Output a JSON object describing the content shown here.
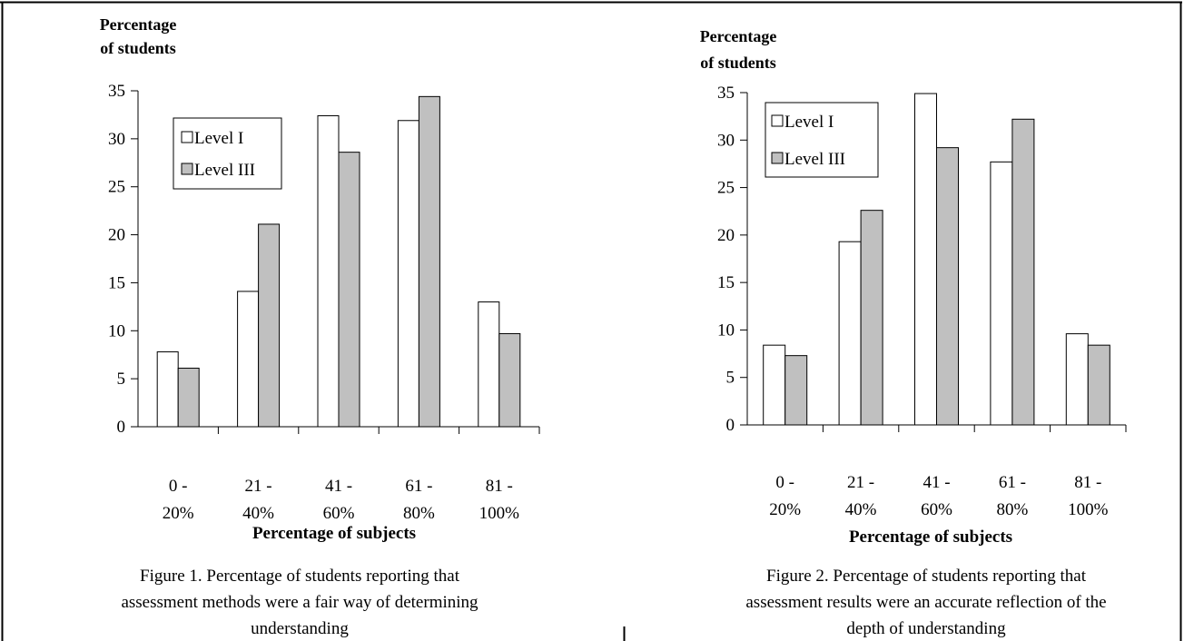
{
  "colors": {
    "level1": "#ffffff",
    "level3": "#c0c0c0",
    "stroke": "#000000"
  },
  "charts": [
    {
      "ylabel_line1": "Percentage",
      "ylabel_line2": "of students",
      "xlabel": "Percentage of subjects",
      "caption_lines": [
        "Figure 1. Percentage of students reporting that",
        "assessment methods were a fair way of determining",
        "understanding"
      ],
      "legend": [
        "Level I",
        "Level III"
      ]
    },
    {
      "ylabel_line1": "Percentage",
      "ylabel_line2": "of students",
      "xlabel": "Percentage of subjects",
      "caption_lines": [
        "Figure 2. Percentage of students reporting that",
        "assessment results were an accurate reflection of the",
        "depth of understanding"
      ],
      "legend": [
        "Level I",
        "Level III"
      ]
    }
  ],
  "chart_data": [
    {
      "type": "bar",
      "categories": [
        [
          "0 -",
          "20%"
        ],
        [
          "21 -",
          "40%"
        ],
        [
          "41 -",
          "60%"
        ],
        [
          "61 -",
          "80%"
        ],
        [
          "81 -",
          "100%"
        ]
      ],
      "series": [
        {
          "name": "Level I",
          "values": [
            7.8,
            14.1,
            32.4,
            31.9,
            13.0
          ]
        },
        {
          "name": "Level III",
          "values": [
            6.1,
            21.1,
            28.6,
            34.4,
            9.7
          ]
        }
      ],
      "ylim": [
        0,
        35
      ],
      "yticks": [
        0,
        5,
        10,
        15,
        20,
        25,
        30,
        35
      ],
      "legend_position": "upper-left",
      "grid": false
    },
    {
      "type": "bar",
      "categories": [
        [
          "0 -",
          "20%"
        ],
        [
          "21 -",
          "40%"
        ],
        [
          "41 -",
          "60%"
        ],
        [
          "61 -",
          "80%"
        ],
        [
          "81 -",
          "100%"
        ]
      ],
      "series": [
        {
          "name": "Level I",
          "values": [
            8.4,
            19.3,
            34.9,
            27.7,
            9.6
          ]
        },
        {
          "name": "Level III",
          "values": [
            7.3,
            22.6,
            29.2,
            32.2,
            8.4
          ]
        }
      ],
      "ylim": [
        0,
        35
      ],
      "yticks": [
        0,
        5,
        10,
        15,
        20,
        25,
        30,
        35
      ],
      "legend_position": "upper-left",
      "grid": false
    }
  ]
}
